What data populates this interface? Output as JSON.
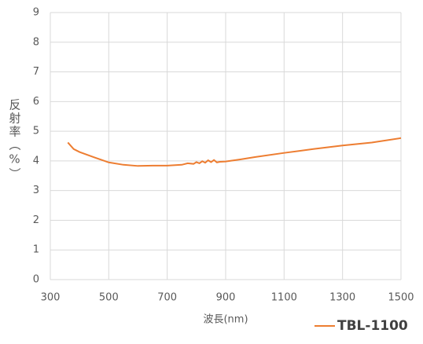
{
  "chart_data": {
    "type": "line",
    "x_label": "波長(nm)",
    "y_label": "反射率（%）",
    "x": [
      360,
      380,
      400,
      450,
      500,
      550,
      600,
      650,
      700,
      750,
      770,
      790,
      800,
      810,
      820,
      830,
      840,
      850,
      860,
      870,
      880,
      900,
      950,
      1000,
      1100,
      1200,
      1300,
      1400,
      1500
    ],
    "series": [
      {
        "name": "TBL-1100",
        "color": "#ed7d31",
        "values": [
          4.62,
          4.4,
          4.3,
          4.12,
          3.95,
          3.87,
          3.83,
          3.84,
          3.84,
          3.87,
          3.92,
          3.9,
          3.96,
          3.92,
          3.99,
          3.94,
          4.02,
          3.96,
          4.03,
          3.95,
          3.97,
          3.98,
          4.05,
          4.13,
          4.27,
          4.4,
          4.52,
          4.62,
          4.77
        ]
      }
    ],
    "xlim": [
      300,
      1500
    ],
    "xticks": [
      300,
      500,
      700,
      900,
      1100,
      1300,
      1500
    ],
    "ylim": [
      0,
      9
    ],
    "yticks": [
      0,
      1,
      2,
      3,
      4,
      5,
      6,
      7,
      8,
      9
    ],
    "grid": true,
    "legend": "bottom-right"
  }
}
